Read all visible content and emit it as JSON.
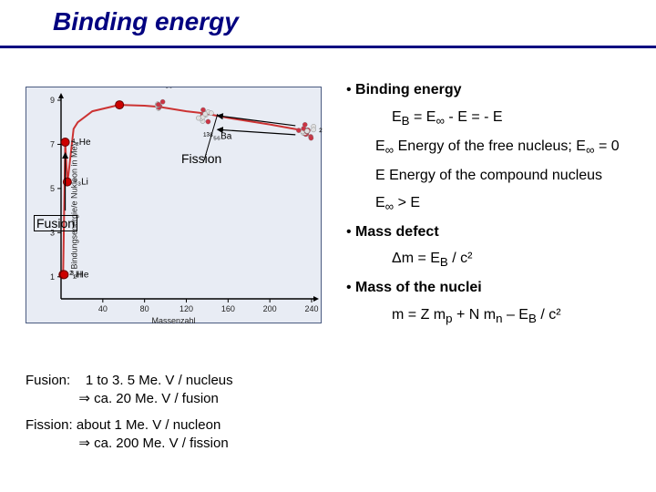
{
  "title": "Binding energy",
  "chart": {
    "type": "line",
    "y_label": "Bindungsenergie/e Nukleon in MeV",
    "x_label": "Massenzahl",
    "xlim": [
      0,
      240
    ],
    "ylim": [
      0,
      9
    ],
    "xticks": [
      40,
      80,
      120,
      160,
      200,
      240
    ],
    "yticks": [
      1,
      3,
      5,
      7,
      9
    ],
    "background_color": "#e8ecf4",
    "axis_color": "#000000",
    "grid_on": false,
    "curve_color": "#cc3333",
    "curve_points": [
      [
        2,
        1.1
      ],
      [
        4,
        7.1
      ],
      [
        6,
        5.3
      ],
      [
        7,
        5.6
      ],
      [
        12,
        7.7
      ],
      [
        16,
        8.0
      ],
      [
        30,
        8.5
      ],
      [
        56,
        8.79
      ],
      [
        80,
        8.75
      ],
      [
        94,
        8.7
      ],
      [
        120,
        8.5
      ],
      [
        138,
        8.4
      ],
      [
        160,
        8.2
      ],
      [
        200,
        7.9
      ],
      [
        235,
        7.6
      ]
    ],
    "markers": [
      {
        "A": 2,
        "label": "²₁H",
        "side": "right"
      },
      {
        "A": 3,
        "label": "³₂He",
        "side": "right"
      },
      {
        "A": 4,
        "label": "⁴₂He",
        "side": "right"
      },
      {
        "A": 6,
        "label": "⁶₃Li",
        "side": "right"
      },
      {
        "A": 56,
        "label": "",
        "side": "none"
      }
    ],
    "marker_color": "#cc0000",
    "nuclide_labels": [
      {
        "A": 94,
        "label": "⁹⁴₃₆Kr",
        "offset": "above"
      },
      {
        "A": 138,
        "label": "¹³⁸₅₆Ba",
        "offset": "below"
      },
      {
        "A": 235,
        "label": "²³⁵₉₂U",
        "offset": "right"
      }
    ],
    "fission_annotation": "Fission",
    "fusion_annotation": "Fusion",
    "fission_arrow_color": "#000000",
    "fusion_arrow_color": "#000000"
  },
  "bullets": {
    "heading1": "Binding energy",
    "eq1_html": "E<sub>B</sub> = E<sub>∞</sub> - E = - E",
    "einf_html": "E<sub>∞</sub> Energy of the free nucleus; E<sub>∞</sub> = 0",
    "e_html": "E  Energy of the compound nucleus",
    "einf_gt_e_html": "E<sub>∞</sub> > E",
    "heading2": "Mass defect",
    "massdef_html": "Δm = E<sub>B</sub> / c²",
    "heading3": "Mass of the nuclei",
    "mass_html": "m = Z m<sub>p</sub> + N m<sub>n</sub> – E<sub>B</sub> / c²"
  },
  "fusion_block": {
    "label": "Fusion:",
    "line1": "1 to 3. 5 Me. V / nucleus",
    "line2": "⇒ ca. 20 Me. V / fusion"
  },
  "fission_block": {
    "line1": "Fission: about 1 Me. V / nucleon",
    "line2": "⇒ ca. 200 Me. V / fission"
  }
}
